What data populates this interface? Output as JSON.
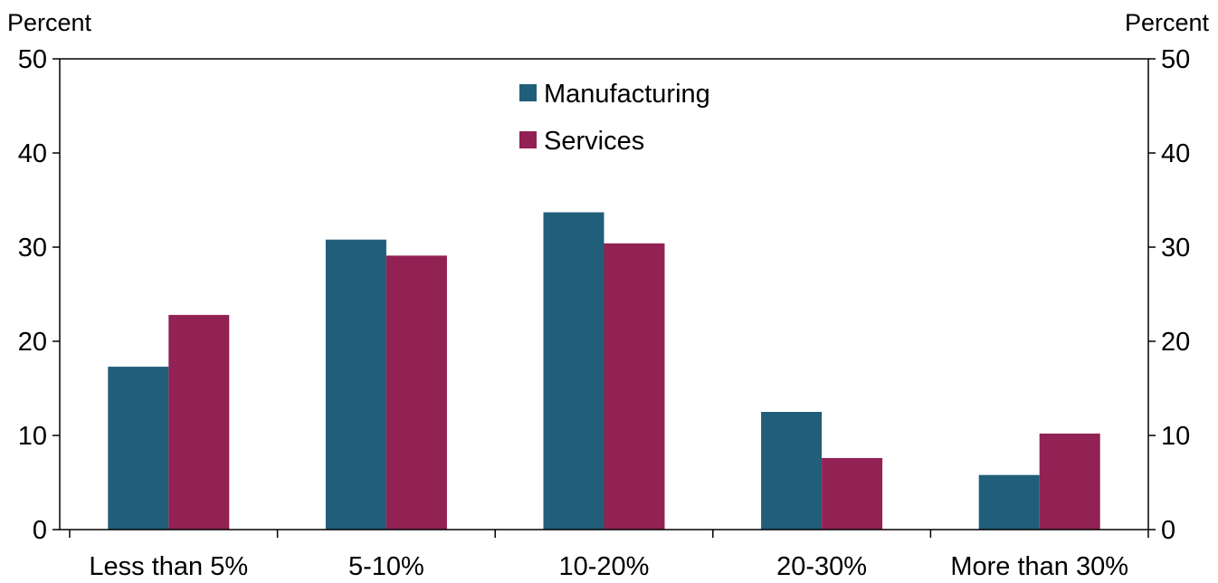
{
  "chart_data": {
    "type": "bar",
    "title": "",
    "xlabel": "",
    "ylabel": "Percent",
    "ylabel_right": "Percent",
    "categories": [
      "Less than 5%",
      "5-10%",
      "10-20%",
      "20-30%",
      "More than 30%"
    ],
    "series": [
      {
        "name": "Manufacturing",
        "color": "#215e79",
        "values": [
          17.3,
          30.8,
          33.7,
          12.5,
          5.8
        ]
      },
      {
        "name": "Services",
        "color": "#922154",
        "values": [
          22.8,
          29.1,
          30.4,
          7.6,
          10.2
        ]
      }
    ],
    "ylim": [
      0,
      50
    ],
    "yticks": [
      0,
      10,
      20,
      30,
      40,
      50
    ],
    "right_axis": true,
    "grid": false,
    "legend": "top-center"
  }
}
